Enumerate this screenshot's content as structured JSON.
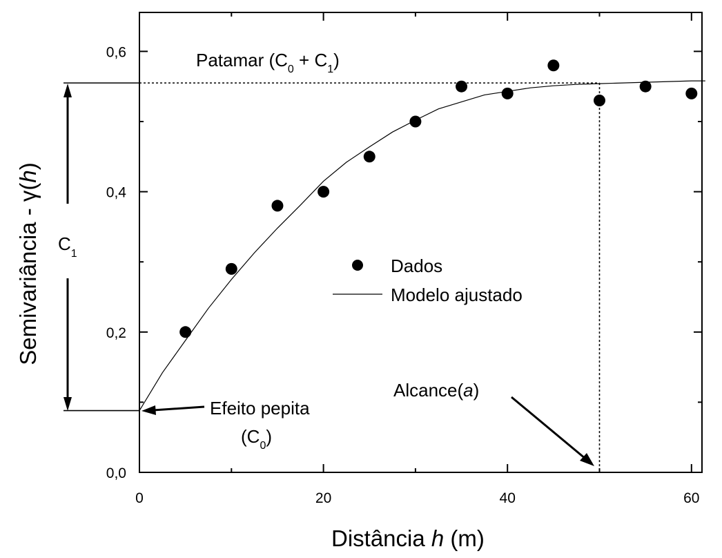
{
  "chart_data": {
    "type": "scatter",
    "xlabel": {
      "text": "Distância ",
      "var": "h",
      "unit": " (m)"
    },
    "ylabel": {
      "text": "Semivariância - γ(",
      "var": "h",
      "close": ")"
    },
    "xlim": [
      0,
      61.5
    ],
    "ylim": [
      0,
      0.65
    ],
    "xticks": [
      0,
      20,
      40,
      60
    ],
    "xtick_labels": [
      "0",
      "20",
      "40",
      "60"
    ],
    "yticks": [
      0.0,
      0.2,
      0.4,
      0.6
    ],
    "ytick_labels": [
      "0,0",
      "0,2",
      "0,4",
      "0,6"
    ],
    "grid": false,
    "legend_position": "center",
    "series": [
      {
        "name": "Dados",
        "kind": "scatter",
        "x": [
          5,
          10,
          15,
          20,
          25,
          30,
          35,
          40,
          45,
          50,
          55,
          60
        ],
        "y": [
          0.2,
          0.29,
          0.38,
          0.4,
          0.45,
          0.5,
          0.55,
          0.54,
          0.58,
          0.53,
          0.55,
          0.54
        ]
      },
      {
        "name": "Modelo ajustado",
        "kind": "line",
        "x": [
          0,
          2.5,
          5,
          7.5,
          10,
          12.5,
          15,
          17.5,
          20,
          22.5,
          25,
          27.5,
          30,
          32.5,
          35,
          37.5,
          40,
          42.5,
          45,
          47.5,
          50,
          52.5,
          55,
          57.5,
          60,
          61.5
        ],
        "y": [
          0.088,
          0.142,
          0.188,
          0.234,
          0.275,
          0.313,
          0.348,
          0.381,
          0.415,
          0.442,
          0.464,
          0.485,
          0.502,
          0.518,
          0.528,
          0.538,
          0.543,
          0.548,
          0.551,
          0.553,
          0.554,
          0.555,
          0.556,
          0.557,
          0.558,
          0.558
        ]
      }
    ],
    "annotations": {
      "sill": {
        "value": 0.555,
        "label": "Patamar (C",
        "sub0": "0",
        "plus": " + C",
        "sub1": "1",
        "close": ")"
      },
      "range": {
        "x": 50,
        "label": "Alcance(",
        "var": "a",
        "close": ")"
      },
      "nugget": {
        "value": 0.088,
        "line1": "Efeito pepita",
        "line2_open": "(C",
        "sub": "0",
        "close": ")"
      },
      "c1": {
        "label": "C",
        "sub": "1"
      }
    }
  }
}
